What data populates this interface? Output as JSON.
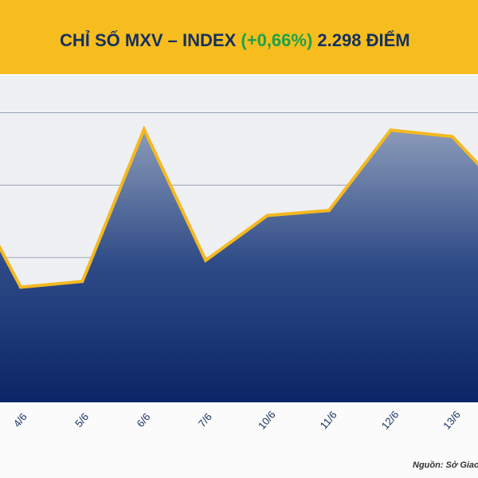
{
  "chart_data": {
    "type": "area",
    "title": [
      "CHỈ SỐ MXV – INDEX",
      "(+0,66%)",
      "2.298 ĐIỂM"
    ],
    "source": "Nguồn: Sở Giao dịch Hàng hóa Việt Nam",
    "categories": [
      null,
      "4/6",
      "5/6",
      "6/6",
      "7/6",
      "10/6",
      "11/6",
      "12/6",
      "13/6",
      null
    ],
    "values": [
      3.2,
      1.59,
      1.67,
      3.77,
      1.96,
      2.58,
      2.65,
      3.76,
      3.67,
      2.76
    ],
    "color": "#f5b820",
    "fill_color": "#0d2a6b",
    "ylim": [
      0,
      4.5
    ],
    "yticks": [
      1,
      2,
      3,
      4
    ],
    "grid": true
  }
}
